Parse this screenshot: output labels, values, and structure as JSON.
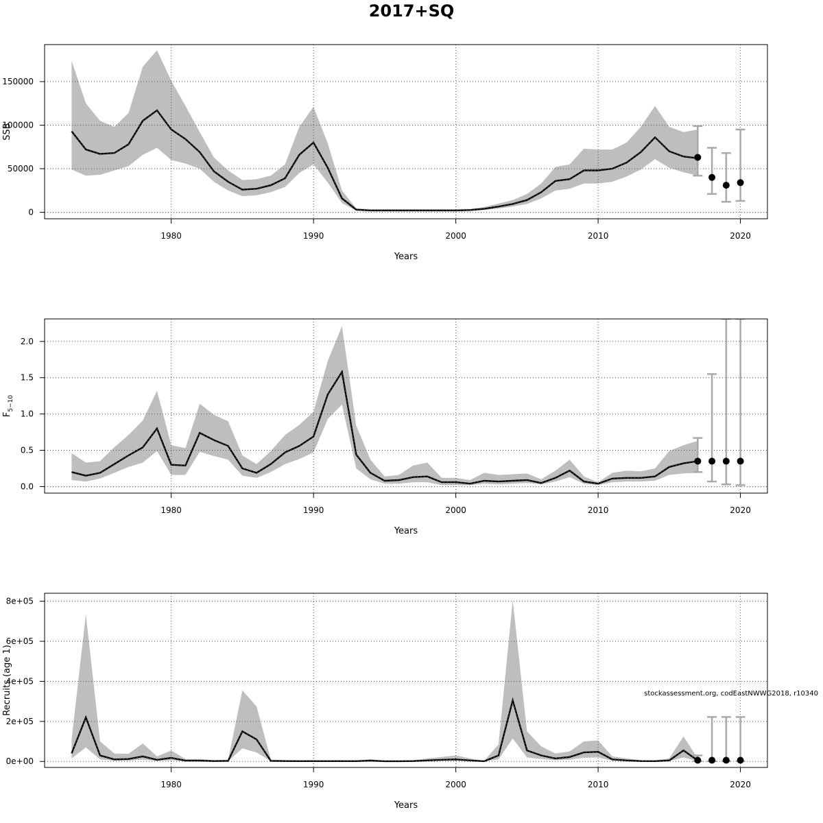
{
  "page": {
    "title": "2017+SQ",
    "credit": "stockassessment.org, codEastNWWG2018, r10340"
  },
  "colors": {
    "band": "#bebebe",
    "line": "#000000",
    "whisker": "#a9a9a9",
    "point": "#000000",
    "grid": "#4d4d4d"
  },
  "chart_data": [
    {
      "type": "line",
      "title": "2017+SQ",
      "ylabel": "SSB",
      "xlabel": "Years",
      "xlim": [
        1971.1,
        2021.9
      ],
      "ylim": [
        -7500,
        192500
      ],
      "xticks": [
        1980,
        1990,
        2000,
        2010,
        2020
      ],
      "yticks": [
        0,
        50000,
        100000,
        150000
      ],
      "ytick_labels": [
        "0",
        "50000",
        "100000",
        "150000"
      ],
      "grid": true,
      "x": [
        1973,
        1974,
        1975,
        1976,
        1977,
        1978,
        1979,
        1980,
        1981,
        1982,
        1983,
        1984,
        1985,
        1986,
        1987,
        1988,
        1989,
        1990,
        1991,
        1992,
        1993,
        1994,
        1995,
        1996,
        1997,
        1998,
        1999,
        2000,
        2001,
        2002,
        2003,
        2004,
        2005,
        2006,
        2007,
        2008,
        2009,
        2010,
        2011,
        2012,
        2013,
        2014,
        2015,
        2016,
        2017
      ],
      "series": [
        {
          "role": "estimate",
          "values": [
            93000,
            72000,
            67000,
            68000,
            78000,
            105000,
            117000,
            95000,
            84000,
            69000,
            47000,
            35000,
            26000,
            27000,
            31000,
            39000,
            66000,
            80000,
            51000,
            16000,
            3000,
            2000,
            2000,
            2000,
            2000,
            2000,
            2000,
            2000,
            2500,
            4000,
            6500,
            9500,
            14000,
            23000,
            36000,
            38000,
            48000,
            48000,
            50000,
            57000,
            69000,
            86000,
            70000,
            64000,
            62000
          ]
        },
        {
          "role": "lower",
          "values": [
            49000,
            42000,
            43000,
            48000,
            53000,
            66000,
            74000,
            60000,
            56000,
            50000,
            35000,
            25000,
            18500,
            19500,
            23000,
            29000,
            45000,
            55000,
            34000,
            10500,
            1800,
            1200,
            1200,
            1200,
            1200,
            1200,
            1200,
            1200,
            1600,
            2600,
            4300,
            6500,
            9500,
            16000,
            25000,
            27000,
            33000,
            33000,
            35000,
            41000,
            49000,
            61000,
            51000,
            46000,
            42000
          ]
        },
        {
          "role": "upper",
          "values": [
            174000,
            125000,
            105000,
            98000,
            114000,
            167000,
            186000,
            151000,
            122000,
            92000,
            63000,
            48000,
            37000,
            38000,
            42000,
            55000,
            98000,
            121000,
            79000,
            25000,
            4500,
            3500,
            3500,
            3500,
            3500,
            3500,
            3500,
            3500,
            3800,
            6000,
            10000,
            14000,
            21000,
            33000,
            52000,
            55000,
            73000,
            72000,
            72000,
            80000,
            98000,
            122000,
            98000,
            92000,
            95000
          ]
        }
      ],
      "forecast": {
        "x": [
          2017,
          2018,
          2019,
          2020
        ],
        "median": [
          63000,
          40000,
          31000,
          34000
        ],
        "lower": [
          42000,
          21000,
          12000,
          13000
        ],
        "upper": [
          99000,
          74000,
          68000,
          95000
        ]
      }
    },
    {
      "type": "line",
      "ylabel": "F",
      "ylabel_sub": "5−10",
      "xlabel": "Years",
      "xlim": [
        1971.1,
        2021.9
      ],
      "ylim": [
        -0.09,
        2.31
      ],
      "xticks": [
        1980,
        1990,
        2000,
        2010,
        2020
      ],
      "yticks": [
        0,
        0.5,
        1,
        1.5,
        2
      ],
      "ytick_labels": [
        "0.0",
        "0.5",
        "1.0",
        "1.5",
        "2.0"
      ],
      "grid": true,
      "x": [
        1973,
        1974,
        1975,
        1976,
        1977,
        1978,
        1979,
        1980,
        1981,
        1982,
        1983,
        1984,
        1985,
        1986,
        1987,
        1988,
        1989,
        1990,
        1991,
        1992,
        1993,
        1994,
        1995,
        1996,
        1997,
        1998,
        1999,
        2000,
        2001,
        2002,
        2003,
        2004,
        2005,
        2006,
        2007,
        2008,
        2009,
        2010,
        2011,
        2012,
        2013,
        2014,
        2015,
        2016,
        2017
      ],
      "series": [
        {
          "role": "estimate",
          "values": [
            0.2,
            0.15,
            0.19,
            0.31,
            0.43,
            0.54,
            0.8,
            0.3,
            0.29,
            0.74,
            0.64,
            0.56,
            0.25,
            0.19,
            0.31,
            0.47,
            0.56,
            0.69,
            1.27,
            1.58,
            0.44,
            0.19,
            0.08,
            0.09,
            0.13,
            0.14,
            0.06,
            0.06,
            0.04,
            0.08,
            0.07,
            0.08,
            0.09,
            0.05,
            0.12,
            0.22,
            0.07,
            0.04,
            0.11,
            0.12,
            0.12,
            0.14,
            0.27,
            0.32,
            0.35
          ]
        },
        {
          "role": "lower",
          "values": [
            0.09,
            0.07,
            0.11,
            0.19,
            0.27,
            0.33,
            0.49,
            0.16,
            0.16,
            0.48,
            0.42,
            0.37,
            0.15,
            0.12,
            0.2,
            0.31,
            0.38,
            0.47,
            0.93,
            1.13,
            0.25,
            0.1,
            0.04,
            0.04,
            0.06,
            0.06,
            0.02,
            0.02,
            0.02,
            0.04,
            0.03,
            0.04,
            0.05,
            0.03,
            0.07,
            0.13,
            0.04,
            0.02,
            0.06,
            0.07,
            0.07,
            0.08,
            0.16,
            0.18,
            0.19
          ]
        },
        {
          "role": "upper",
          "values": [
            0.46,
            0.33,
            0.35,
            0.54,
            0.71,
            0.91,
            1.32,
            0.57,
            0.53,
            1.14,
            0.99,
            0.9,
            0.43,
            0.31,
            0.49,
            0.71,
            0.85,
            1.03,
            1.73,
            2.21,
            0.84,
            0.37,
            0.14,
            0.16,
            0.29,
            0.33,
            0.12,
            0.12,
            0.09,
            0.19,
            0.16,
            0.17,
            0.18,
            0.1,
            0.22,
            0.37,
            0.14,
            0.06,
            0.19,
            0.22,
            0.21,
            0.25,
            0.49,
            0.57,
            0.63
          ]
        }
      ],
      "forecast": {
        "x": [
          2017,
          2018,
          2019,
          2020
        ],
        "median": [
          0.35,
          0.35,
          0.35,
          0.35
        ],
        "lower": [
          0.2,
          0.07,
          0.03,
          0.02
        ],
        "upper": [
          0.67,
          1.55,
          2.31,
          2.31
        ]
      }
    },
    {
      "type": "line",
      "ylabel": "Recruits (age 1)",
      "xlabel": "Years",
      "xlim": [
        1971.1,
        2021.9
      ],
      "ylim": [
        -30000,
        840000
      ],
      "xticks": [
        1980,
        1990,
        2000,
        2010,
        2020
      ],
      "yticks": [
        0,
        200000,
        400000,
        600000,
        800000
      ],
      "ytick_labels": [
        "0e+00",
        "2e+05",
        "4e+05",
        "6e+05",
        "8e+05"
      ],
      "grid": true,
      "x": [
        1973,
        1974,
        1975,
        1976,
        1977,
        1978,
        1979,
        1980,
        1981,
        1982,
        1983,
        1984,
        1985,
        1986,
        1987,
        1988,
        1989,
        1990,
        1991,
        1992,
        1993,
        1994,
        1995,
        1996,
        1997,
        1998,
        1999,
        2000,
        2001,
        2002,
        2003,
        2004,
        2005,
        2006,
        2007,
        2008,
        2009,
        2010,
        2011,
        2012,
        2013,
        2014,
        2015,
        2016,
        2017
      ],
      "series": [
        {
          "role": "estimate",
          "values": [
            40000,
            220000,
            30000,
            10000,
            12000,
            25000,
            8000,
            18000,
            4000,
            4000,
            2000,
            3000,
            150000,
            110000,
            3000,
            2000,
            1500,
            1500,
            1500,
            1500,
            1500,
            4000,
            1000,
            1000,
            2000,
            5000,
            8000,
            10000,
            5000,
            1000,
            30000,
            305000,
            55000,
            30000,
            15000,
            22000,
            45000,
            48000,
            10000,
            5000,
            2000,
            1500,
            5000,
            55000,
            5000
          ]
        },
        {
          "role": "lower",
          "values": [
            15000,
            70000,
            10000,
            4000,
            4000,
            9000,
            3000,
            6000,
            1500,
            1500,
            800,
            1000,
            65000,
            45000,
            1000,
            700,
            500,
            500,
            500,
            500,
            500,
            1500,
            400,
            400,
            700,
            2000,
            3000,
            4000,
            2000,
            400,
            10000,
            115000,
            20000,
            12000,
            6000,
            9000,
            18000,
            20000,
            4000,
            2000,
            800,
            600,
            2000,
            20000,
            2000
          ]
        },
        {
          "role": "upper",
          "values": [
            110000,
            735000,
            100000,
            40000,
            38000,
            90000,
            25000,
            55000,
            12000,
            12000,
            6000,
            9000,
            355000,
            275000,
            9000,
            6000,
            4500,
            4500,
            4500,
            4500,
            4500,
            12000,
            3000,
            3000,
            6000,
            15000,
            22000,
            30000,
            15000,
            3000,
            85000,
            805000,
            150000,
            75000,
            40000,
            50000,
            100000,
            105000,
            25000,
            15000,
            6000,
            5000,
            15000,
            125000,
            15000
          ]
        }
      ],
      "forecast": {
        "x": [
          2017,
          2018,
          2019,
          2020
        ],
        "median": [
          6000,
          6000,
          6000,
          6000
        ],
        "lower": [
          1000,
          1000,
          1000,
          1000
        ],
        "upper": [
          30000,
          222000,
          222000,
          222000
        ]
      }
    }
  ]
}
